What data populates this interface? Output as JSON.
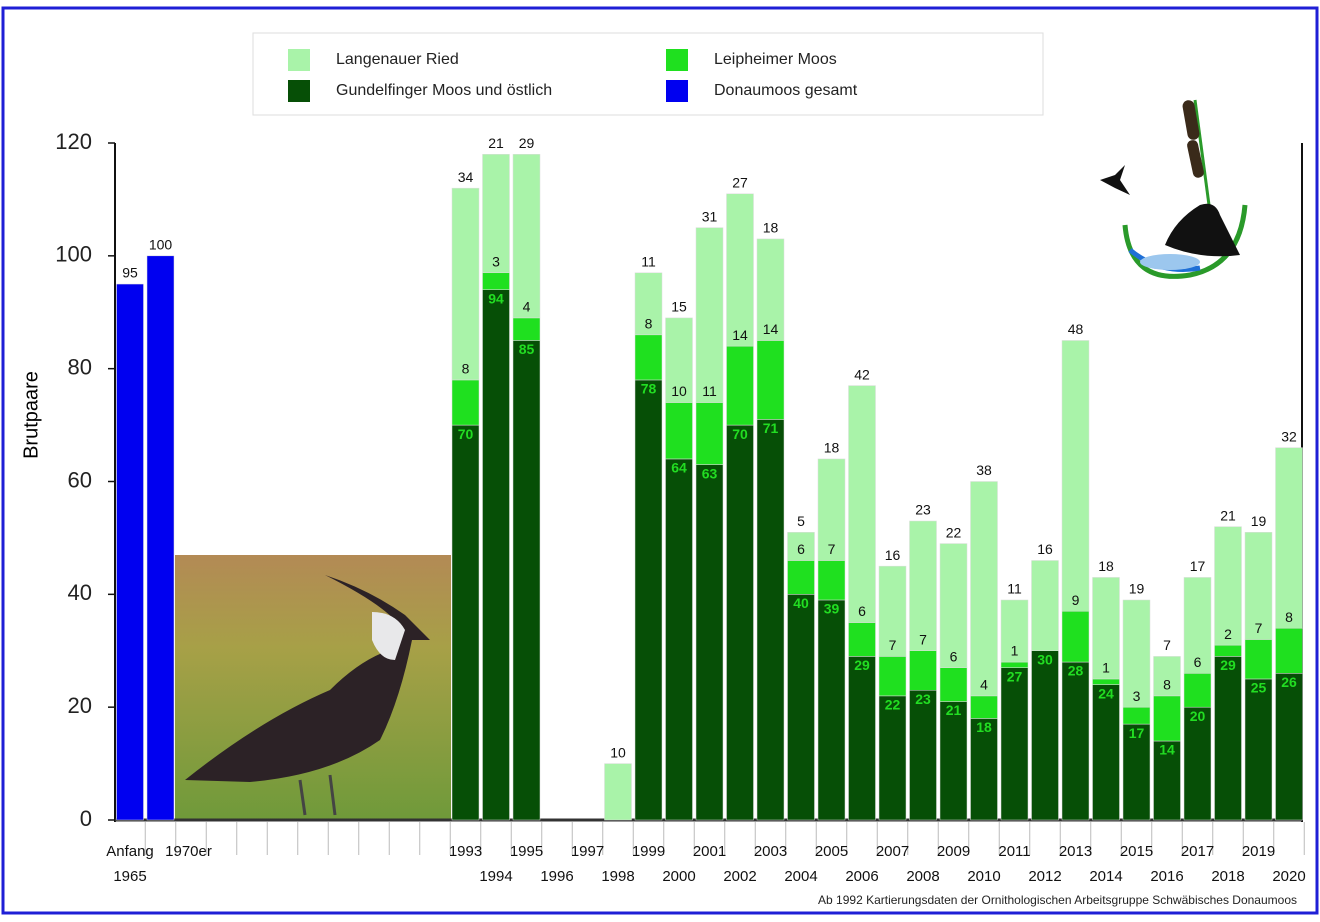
{
  "chart_data": {
    "type": "stacked_bar",
    "y_label": "Brutpaare",
    "note": "Ab 1992 Kartierungsdaten der Ornithologischen Arbeitsgruppe Schwäbisches Donaumoos",
    "categories": [
      "Anfang 1965",
      "1970er",
      null,
      null,
      null,
      null,
      null,
      null,
      null,
      null,
      null,
      "1993",
      "1994",
      "1995",
      "1996",
      "1997",
      "1998",
      "1999",
      "2000",
      "2001",
      "2002",
      "2003",
      "2004",
      "2005",
      "2006",
      "2007",
      "2008",
      "2009",
      "2010",
      "2011",
      "2012",
      "2013",
      "2014",
      "2015",
      "2016",
      "2017",
      "2018",
      "2019",
      "2020"
    ],
    "series": [
      {
        "name": "Langenauer Ried",
        "color": "#a9f3a9",
        "values": [
          null,
          null,
          null,
          null,
          null,
          null,
          null,
          null,
          null,
          null,
          null,
          34,
          21,
          29,
          null,
          null,
          10,
          11,
          15,
          31,
          27,
          18,
          5,
          18,
          42,
          16,
          23,
          22,
          38,
          11,
          16,
          48,
          18,
          19,
          7,
          17,
          21,
          19,
          32
        ]
      },
      {
        "name": "Leipheimer Moos",
        "color": "#1fe01f",
        "values": [
          null,
          null,
          null,
          null,
          null,
          null,
          null,
          null,
          null,
          null,
          null,
          8,
          3,
          4,
          null,
          null,
          null,
          8,
          10,
          11,
          14,
          14,
          6,
          7,
          6,
          7,
          7,
          6,
          4,
          1,
          null,
          9,
          1,
          3,
          8,
          6,
          2,
          7,
          8
        ]
      },
      {
        "name": "Gundelfinger Moos und östlich",
        "color": "#064f06",
        "values": [
          null,
          null,
          null,
          null,
          null,
          null,
          null,
          null,
          null,
          null,
          null,
          70,
          94,
          85,
          null,
          null,
          null,
          78,
          64,
          63,
          70,
          71,
          40,
          39,
          29,
          22,
          23,
          21,
          18,
          27,
          30,
          28,
          24,
          17,
          14,
          20,
          29,
          25,
          26
        ]
      },
      {
        "name": "Donaumoos gesamt",
        "color": "#0000f0",
        "values": [
          95,
          100,
          null,
          null,
          null,
          null,
          null,
          null,
          null,
          null,
          null,
          null,
          null,
          null,
          null,
          null,
          null,
          null,
          null,
          null,
          null,
          null,
          null,
          null,
          null,
          null,
          null,
          null,
          null,
          null,
          null,
          null,
          null,
          null,
          null,
          null,
          null,
          null,
          null
        ]
      }
    ],
    "ylim": [
      0,
      120
    ],
    "yticks": [
      0,
      20,
      40,
      60,
      80,
      100,
      120
    ]
  }
}
